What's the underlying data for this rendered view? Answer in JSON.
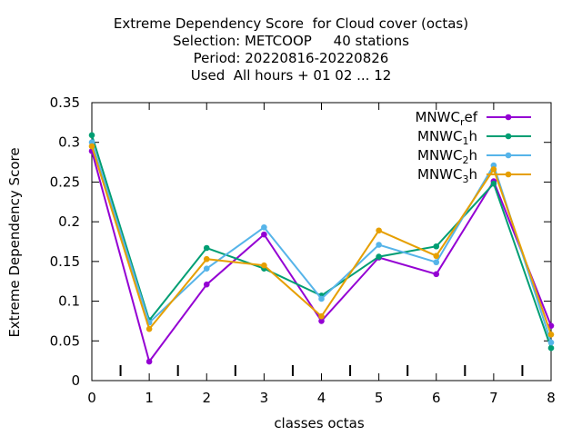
{
  "chart_data": {
    "type": "line",
    "title_lines": [
      "Extreme Dependency Score  for Cloud cover (octas)",
      "Selection: METCOOP     40 stations",
      "Period: 20220816-20220826",
      "Used  All hours + 01 02 ... 12"
    ],
    "xlabel": "classes octas",
    "ylabel": "Extreme Dependency Score",
    "xlim": [
      0,
      8
    ],
    "ylim": [
      0,
      0.35
    ],
    "x_ticks": [
      0,
      1,
      2,
      3,
      4,
      5,
      6,
      7,
      8
    ],
    "y_ticks": [
      0,
      0.05,
      0.1,
      0.15,
      0.2,
      0.25,
      0.3,
      0.35
    ],
    "y_tick_labels": [
      "0",
      "0.05",
      "0.1",
      "0.15",
      "0.2",
      "0.25",
      "0.3",
      "0.35"
    ],
    "legend_position": "top-right",
    "grid": false,
    "x": [
      0,
      1,
      2,
      3,
      4,
      5,
      6,
      7,
      8
    ],
    "series": [
      {
        "name": "MNWC_ref",
        "label_main": "MNWC",
        "label_sub": "r",
        "label_rest": "ef",
        "color": "#9400d3",
        "values": [
          0.289,
          0.024,
          0.121,
          0.184,
          0.075,
          0.155,
          0.134,
          0.251,
          0.069
        ]
      },
      {
        "name": "MNWC_1h",
        "label_main": "MNWC",
        "label_sub": "1",
        "label_rest": "h",
        "color": "#009e73",
        "values": [
          0.309,
          0.076,
          0.167,
          0.141,
          0.107,
          0.156,
          0.169,
          0.248,
          0.041
        ]
      },
      {
        "name": "MNWC_2h",
        "label_main": "MNWC",
        "label_sub": "2",
        "label_rest": "h",
        "color": "#56b4e9",
        "values": [
          0.3,
          0.073,
          0.141,
          0.193,
          0.103,
          0.171,
          0.149,
          0.271,
          0.048
        ]
      },
      {
        "name": "MNWC_3h",
        "label_main": "MNWC",
        "label_sub": "3",
        "label_rest": "h",
        "color": "#e69f00",
        "values": [
          0.295,
          0.065,
          0.153,
          0.145,
          0.081,
          0.189,
          0.157,
          0.266,
          0.058
        ]
      }
    ]
  }
}
